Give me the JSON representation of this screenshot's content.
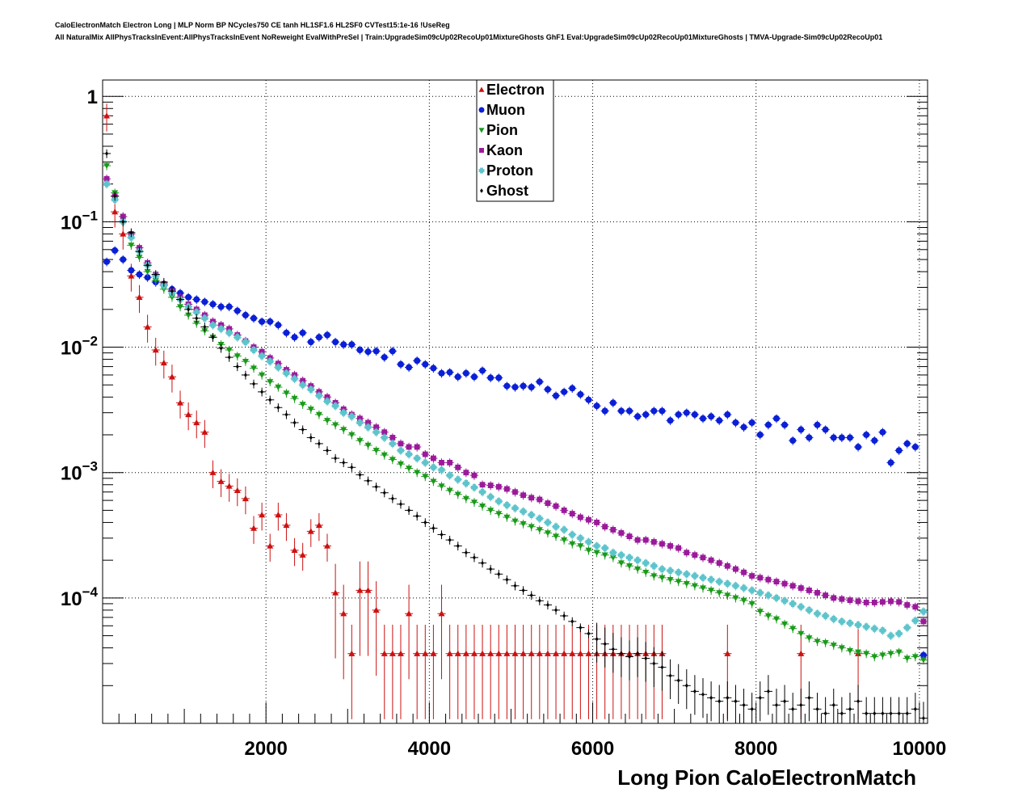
{
  "header": {
    "line1": "CaloElectronMatch Electron Long | MLP Norm BP NCycles750 CE tanh HL1SF1.6 HL2SF0 CVTest15:1e-16 !UseReg",
    "line2": "All NaturalMix AllPhysTracksInEvent:AllPhysTracksInEvent NoReweight EvalWithPreSel | Train:UpgradeSim09cUp02RecoUp01MixtureGhosts GhF1 Eval:UpgradeSim09cUp02RecoUp01MixtureGhosts | TMVA-Upgrade-Sim09cUp02RecoUp01"
  },
  "chart_data": {
    "type": "scatter",
    "xlabel": "Long Pion CaloElectronMatch",
    "ylabel": "",
    "xlim": [
      0,
      10100
    ],
    "ylim": [
      1e-05,
      1.35
    ],
    "yscale": "log",
    "grid": true,
    "legend_position": "top-center",
    "x_ticks": [
      "2000",
      "4000",
      "6000",
      "8000",
      "10000"
    ],
    "y_ticks": [
      {
        "value": 1,
        "base": "1",
        "exp": ""
      },
      {
        "value": 0.1,
        "base": "10",
        "exp": "−1"
      },
      {
        "value": 0.01,
        "base": "10",
        "exp": "−2"
      },
      {
        "value": 0.001,
        "base": "10",
        "exp": "−3"
      },
      {
        "value": 0.0001,
        "base": "10",
        "exp": "−4"
      }
    ],
    "x": [
      50,
      150,
      250,
      350,
      450,
      550,
      650,
      750,
      850,
      950,
      1050,
      1150,
      1250,
      1350,
      1450,
      1550,
      1650,
      1750,
      1850,
      1950,
      2050,
      2150,
      2250,
      2350,
      2450,
      2550,
      2650,
      2750,
      2850,
      2950,
      3050,
      3150,
      3250,
      3350,
      3450,
      3550,
      3650,
      3750,
      3850,
      3950,
      4050,
      4150,
      4250,
      4350,
      4450,
      4550,
      4650,
      4750,
      4850,
      4950,
      5050,
      5150,
      5250,
      5350,
      5450,
      5550,
      5650,
      5750,
      5850,
      5950,
      6050,
      6150,
      6250,
      6350,
      6450,
      6550,
      6650,
      6750,
      6850,
      6950,
      7050,
      7150,
      7250,
      7350,
      7450,
      7550,
      7650,
      7750,
      7850,
      7950,
      8050,
      8150,
      8250,
      8350,
      8450,
      8550,
      8650,
      8750,
      8850,
      8950,
      9050,
      9150,
      9250,
      9350,
      9450,
      9550,
      9650,
      9750,
      9850,
      9950,
      10050
    ],
    "series": [
      {
        "name": "Electron",
        "color": "#cc1111",
        "marker": "triangle-up",
        "values": [
          0.7,
          0.12,
          0.08,
          0.037,
          0.025,
          0.0145,
          0.0095,
          0.0075,
          0.0058,
          0.0036,
          0.0029,
          0.0025,
          0.0021,
          0.001,
          0.00085,
          0.00078,
          0.00072,
          0.00062,
          0.00036,
          0.00046,
          0.00026,
          0.00046,
          0.00038,
          0.00024,
          0.00022,
          0.00034,
          0.00038,
          0.00026,
          0.00011,
          7.5e-05,
          3.6e-05,
          0.000115,
          0.000115,
          8e-05,
          3.6e-05,
          3.6e-05,
          3.6e-05,
          7.5e-05,
          3.6e-05,
          3.6e-05,
          3.6e-05,
          7.5e-05,
          3.6e-05,
          3.6e-05,
          3.6e-05,
          3.6e-05,
          3.6e-05,
          3.6e-05,
          3.6e-05,
          3.6e-05,
          3.6e-05,
          3.6e-05,
          3.6e-05,
          3.6e-05,
          3.6e-05,
          3.6e-05,
          3.6e-05,
          3.6e-05,
          3.6e-05,
          3.6e-05,
          3.6e-05,
          3.6e-05,
          3.6e-05,
          3.6e-05,
          3.6e-05,
          3.6e-05,
          3.6e-05,
          3.6e-05,
          3.6e-05,
          3.6e-05,
          3.6e-05,
          3.6e-05,
          3.6e-05,
          3.6e-05,
          3.6e-05,
          3.6e-05,
          3.6e-05,
          3.6e-05,
          3.6e-05,
          3.6e-05,
          3.6e-05,
          3.6e-05,
          3.6e-05,
          3.6e-05,
          3.6e-05,
          3.6e-05,
          3.6e-05,
          3.6e-05,
          3.6e-05,
          3.6e-05,
          3.6e-05,
          3.6e-05,
          3.6e-05,
          3.6e-05,
          3.6e-05,
          3.6e-05,
          3.6e-05,
          3.6e-05,
          3.6e-05,
          3.6e-05,
          3.6e-05
        ],
        "present": [
          1,
          1,
          1,
          1,
          1,
          1,
          1,
          1,
          1,
          1,
          1,
          1,
          1,
          1,
          1,
          1,
          1,
          1,
          1,
          1,
          1,
          1,
          1,
          1,
          1,
          1,
          1,
          1,
          1,
          1,
          1,
          1,
          1,
          1,
          1,
          1,
          1,
          1,
          1,
          1,
          1,
          1,
          1,
          1,
          1,
          1,
          1,
          1,
          1,
          1,
          1,
          1,
          1,
          1,
          1,
          1,
          1,
          1,
          1,
          1,
          1,
          1,
          1,
          1,
          1,
          1,
          1,
          1,
          1,
          0,
          0,
          0,
          0,
          0,
          0,
          0,
          1,
          0,
          0,
          0,
          0,
          0,
          0,
          0,
          0,
          1,
          0,
          0,
          0,
          0,
          0,
          0,
          1,
          0,
          0,
          0,
          0,
          0,
          0,
          0,
          0
        ]
      },
      {
        "name": "Muon",
        "color": "#0a1fd6",
        "marker": "circle",
        "values": [
          0.048,
          0.059,
          0.05,
          0.041,
          0.038,
          0.036,
          0.033,
          0.031,
          0.029,
          0.027,
          0.025,
          0.024,
          0.023,
          0.022,
          0.021,
          0.021,
          0.0195,
          0.018,
          0.017,
          0.016,
          0.016,
          0.015,
          0.013,
          0.012,
          0.013,
          0.011,
          0.012,
          0.0125,
          0.011,
          0.0105,
          0.0105,
          0.0095,
          0.0092,
          0.0093,
          0.0083,
          0.0093,
          0.0073,
          0.0069,
          0.0078,
          0.0073,
          0.0068,
          0.0062,
          0.0063,
          0.0058,
          0.0062,
          0.0058,
          0.0065,
          0.0057,
          0.0057,
          0.0049,
          0.0048,
          0.0049,
          0.0048,
          0.0053,
          0.0046,
          0.0041,
          0.0044,
          0.0047,
          0.0042,
          0.0038,
          0.0034,
          0.0031,
          0.0036,
          0.0031,
          0.0031,
          0.0028,
          0.0029,
          0.0031,
          0.0031,
          0.0026,
          0.0029,
          0.003,
          0.0029,
          0.0027,
          0.0028,
          0.0026,
          0.0029,
          0.0025,
          0.0023,
          0.0025,
          0.002,
          0.0024,
          0.0027,
          0.0024,
          0.0018,
          0.0022,
          0.0019,
          0.0024,
          0.0022,
          0.0019,
          0.0019,
          0.0019,
          0.0016,
          0.002,
          0.0018,
          0.0021,
          0.0012,
          0.0015,
          0.0017,
          0.0016,
          3.5e-05
        ]
      },
      {
        "name": "Pion",
        "color": "#1a9a1a",
        "marker": "triangle-down",
        "values": [
          0.28,
          0.17,
          0.11,
          0.065,
          0.052,
          0.04,
          0.034,
          0.029,
          0.025,
          0.021,
          0.018,
          0.0155,
          0.0135,
          0.012,
          0.0105,
          0.0095,
          0.0085,
          0.0077,
          0.0068,
          0.006,
          0.0053,
          0.0048,
          0.0043,
          0.0039,
          0.0035,
          0.0032,
          0.0029,
          0.0026,
          0.0024,
          0.0022,
          0.002,
          0.0018,
          0.00165,
          0.0015,
          0.00138,
          0.00127,
          0.00117,
          0.00108,
          0.001,
          0.00093,
          0.00085,
          0.00078,
          0.00072,
          0.00067,
          0.00062,
          0.00058,
          0.00054,
          0.0005,
          0.00047,
          0.00044,
          0.00041,
          0.00039,
          0.00037,
          0.00035,
          0.00033,
          0.00031,
          0.00029,
          0.00027,
          0.00026,
          0.00024,
          0.00023,
          0.00022,
          0.00021,
          0.00019,
          0.00018,
          0.00017,
          0.00016,
          0.00015,
          0.000145,
          0.00014,
          0.000135,
          0.00013,
          0.000125,
          0.00012,
          0.000115,
          0.00011,
          0.000105,
          0.0001,
          9.55e-05,
          9e-05,
          7.8e-05,
          7.2e-05,
          6.8e-05,
          6.2e-05,
          5.7e-05,
          5.2e-05,
          4.8e-05,
          4.5e-05,
          4.4e-05,
          4.2e-05,
          4e-05,
          3.8e-05,
          3.7e-05,
          3.6e-05,
          3.4e-05,
          3.5e-05,
          3.6e-05,
          3.7e-05,
          3.3e-05,
          3.4e-05,
          3.2e-05
        ]
      },
      {
        "name": "Kaon",
        "color": "#9a1a9a",
        "marker": "square",
        "values": [
          0.22,
          0.16,
          0.11,
          0.08,
          0.062,
          0.047,
          0.038,
          0.032,
          0.028,
          0.025,
          0.022,
          0.02,
          0.018,
          0.016,
          0.015,
          0.014,
          0.0125,
          0.0112,
          0.01,
          0.0092,
          0.0082,
          0.0074,
          0.0066,
          0.006,
          0.0054,
          0.0049,
          0.0044,
          0.004,
          0.0036,
          0.0032,
          0.0029,
          0.0027,
          0.0025,
          0.0023,
          0.0021,
          0.0019,
          0.0017,
          0.0016,
          0.0016,
          0.0014,
          0.0013,
          0.0012,
          0.0012,
          0.0011,
          0.001,
          0.00095,
          0.0008,
          0.00079,
          0.00077,
          0.00074,
          0.0007,
          0.00066,
          0.00063,
          0.00061,
          0.00057,
          0.00054,
          0.0005,
          0.00047,
          0.00044,
          0.00042,
          0.0004,
          0.00037,
          0.00035,
          0.00033,
          0.00031,
          0.00029,
          0.00029,
          0.00028,
          0.00027,
          0.00026,
          0.00025,
          0.00023,
          0.00022,
          0.00021,
          0.0002,
          0.00019,
          0.00018,
          0.00017,
          0.00016,
          0.00015,
          0.000145,
          0.00014,
          0.000135,
          0.00013,
          0.000125,
          0.00012,
          0.000115,
          0.00011,
          0.000105,
          0.0001,
          9.8e-05,
          9.6e-05,
          9.4e-05,
          9.2e-05,
          9.2e-05,
          9.3e-05,
          9.4e-05,
          9.3e-05,
          8.8e-05,
          8.5e-05,
          6.5e-05
        ]
      },
      {
        "name": "Proton",
        "color": "#5ec4cc",
        "marker": "cross",
        "values": [
          0.2,
          0.15,
          0.1,
          0.075,
          0.058,
          0.045,
          0.037,
          0.031,
          0.027,
          0.024,
          0.021,
          0.019,
          0.017,
          0.015,
          0.014,
          0.013,
          0.012,
          0.011,
          0.0095,
          0.0085,
          0.0077,
          0.0069,
          0.0062,
          0.0056,
          0.005,
          0.0046,
          0.0041,
          0.0037,
          0.0034,
          0.003,
          0.0028,
          0.0025,
          0.0023,
          0.0021,
          0.0019,
          0.0017,
          0.0015,
          0.0014,
          0.0013,
          0.0012,
          0.0011,
          0.00105,
          0.00095,
          0.00088,
          0.00082,
          0.00076,
          0.0007,
          0.00064,
          0.00059,
          0.00055,
          0.00052,
          0.00049,
          0.00046,
          0.00043,
          0.0004,
          0.00037,
          0.00035,
          0.00032,
          0.0003,
          0.00028,
          0.00026,
          0.00025,
          0.00023,
          0.00022,
          0.00021,
          0.0002,
          0.00019,
          0.00018,
          0.00017,
          0.000165,
          0.00016,
          0.000155,
          0.00015,
          0.000145,
          0.00014,
          0.000135,
          0.00013,
          0.000125,
          0.00012,
          0.000115,
          0.00011,
          0.000105,
          0.0001,
          9.5e-05,
          9e-05,
          8.5e-05,
          8e-05,
          7.5e-05,
          7.2e-05,
          6.8e-05,
          6.5e-05,
          6.3e-05,
          6.1e-05,
          5.9e-05,
          5.7e-05,
          5.5e-05,
          5e-05,
          5.2e-05,
          5.8e-05,
          6.6e-05,
          7.8e-05
        ]
      },
      {
        "name": "Ghost",
        "color": "#000000",
        "marker": "diamond",
        "values": [
          0.35,
          0.16,
          0.1,
          0.082,
          0.058,
          0.045,
          0.038,
          0.033,
          0.028,
          0.024,
          0.02,
          0.017,
          0.0145,
          0.012,
          0.0098,
          0.0083,
          0.007,
          0.006,
          0.0051,
          0.0044,
          0.0038,
          0.0033,
          0.0029,
          0.0025,
          0.0022,
          0.0019,
          0.0017,
          0.0015,
          0.0013,
          0.0012,
          0.0011,
          0.00096,
          0.00086,
          0.00077,
          0.00069,
          0.00062,
          0.00056,
          0.0005,
          0.00045,
          0.0004,
          0.00036,
          0.00032,
          0.00029,
          0.00026,
          0.00023,
          0.00021,
          0.00019,
          0.00017,
          0.000155,
          0.00014,
          0.000125,
          0.000115,
          0.000105,
          9.5e-05,
          8.8e-05,
          8e-05,
          7.2e-05,
          6.5e-05,
          5.8e-05,
          5.2e-05,
          4.7e-05,
          4.3e-05,
          3.9e-05,
          3.6e-05,
          3.4e-05,
          3.6e-05,
          3.3e-05,
          3e-05,
          2.8e-05,
          2.4e-05,
          2.2e-05,
          2e-05,
          1.8e-05,
          1.7e-05,
          1.6e-05,
          1.5e-05,
          1.6e-05,
          1.5e-05,
          1.4e-05,
          1.3e-05,
          1.6e-05,
          1.8e-05,
          1.4e-05,
          1.5e-05,
          1.3e-05,
          1.4e-05,
          1.6e-05,
          1.3e-05,
          1.2e-05,
          1.4e-05,
          1.2e-05,
          1.3e-05,
          1.5e-05,
          1.2e-05,
          1.2e-05,
          1.2e-05,
          1.2e-05,
          1.2e-05,
          1.2e-05,
          1.3e-05,
          1.1e-05
        ]
      }
    ]
  }
}
